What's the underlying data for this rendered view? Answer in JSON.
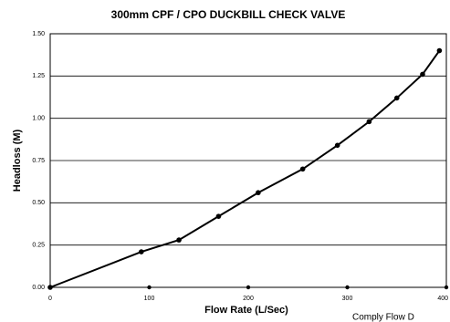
{
  "chart_data": {
    "type": "line",
    "title": "300mm CPF / CPO DUCKBILL CHECK VALVE",
    "x_label": "Flow Rate (L/Sec)",
    "y_label": "Headloss (M)",
    "annotation": "Comply Flow D",
    "x": [
      0,
      92,
      130,
      170,
      210,
      255,
      290,
      322,
      350,
      376,
      393
    ],
    "series": [
      {
        "name": "Headloss",
        "color": "#000000",
        "values": [
          0,
          0.21,
          0.28,
          0.42,
          0.56,
          0.7,
          0.84,
          0.98,
          1.12,
          1.26,
          1.4
        ]
      }
    ],
    "xlim": [
      0,
      400
    ],
    "xticks": [
      0,
      100,
      200,
      300,
      400
    ],
    "ylim": [
      0,
      1.5
    ],
    "yticks": [
      {
        "value": 0,
        "label": "0.00"
      },
      {
        "value": 0.25,
        "label": "0.25"
      },
      {
        "value": 0.5,
        "label": "0.50"
      },
      {
        "value": 0.75,
        "label": "0.75"
      },
      {
        "value": 1,
        "label": "1.00"
      },
      {
        "value": 1.25,
        "label": "1.25"
      },
      {
        "value": 1.5,
        "label": "1.50"
      }
    ],
    "grid": true
  }
}
